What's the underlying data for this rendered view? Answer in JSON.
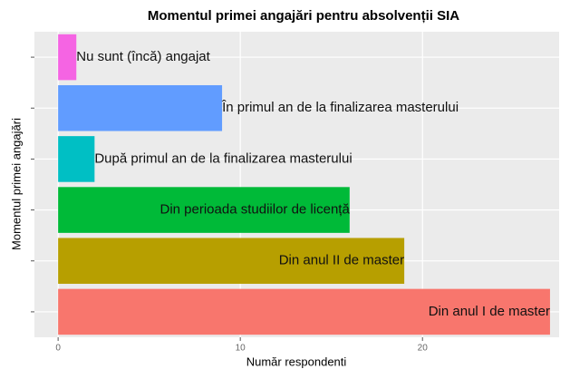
{
  "chart_data": {
    "type": "bar",
    "orientation": "horizontal",
    "title": "Momentul primei angajări pentru absolvenții SIA",
    "x_label": "Număr respondenti",
    "y_label": "Momentul primei angajări",
    "categories": [
      "Nu sunt (încă) angajat",
      "În primul an de la finalizarea masterului",
      "După primul an de la finalizarea masterului",
      "Din perioada studiilor de licență",
      "Din anul II de master",
      "Din anul I de master"
    ],
    "values": [
      1,
      9,
      2,
      16,
      19,
      27
    ],
    "colors": [
      "#f564e3",
      "#619cff",
      "#00bfc4",
      "#00ba38",
      "#b79f00",
      "#f8766d"
    ],
    "xlim": [
      -1.3,
      27.5
    ],
    "xticks": [
      0,
      10,
      20
    ],
    "grid": true
  }
}
